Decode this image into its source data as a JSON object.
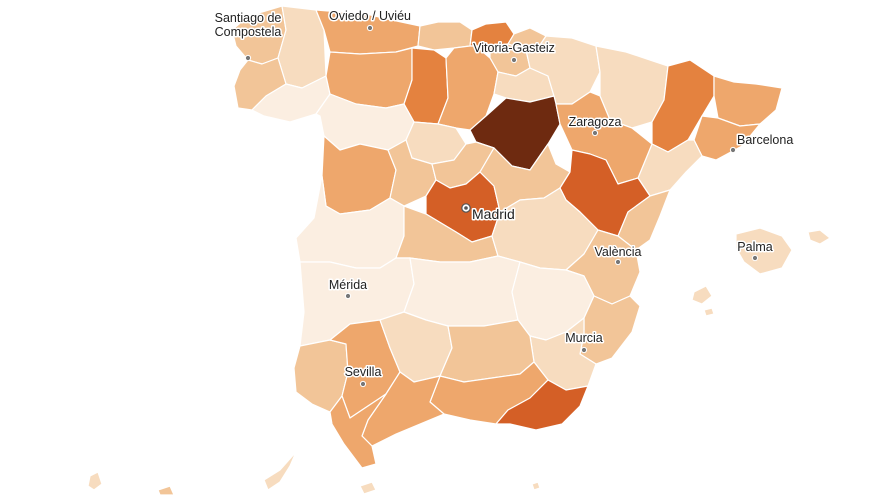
{
  "map": {
    "country": "Spain",
    "palette": {
      "c0": "#fbeee1",
      "c1": "#f7dcbf",
      "c2": "#f2c598",
      "c3": "#eea76c",
      "c4": "#e4823f",
      "c5": "#d45f26",
      "c6": "#6e2a10"
    },
    "cities": [
      {
        "id": "santiago",
        "lines": [
          "Santiago de",
          "Compostela"
        ],
        "capital": false
      },
      {
        "id": "oviedo",
        "lines": [
          "Oviedo / Uviéu"
        ],
        "capital": false
      },
      {
        "id": "vitoria",
        "lines": [
          "Vitoria-Gasteiz"
        ],
        "capital": false
      },
      {
        "id": "zaragoza",
        "lines": [
          "Zaragoza"
        ],
        "capital": false
      },
      {
        "id": "barcelona",
        "lines": [
          "Barcelona"
        ],
        "capital": false
      },
      {
        "id": "madrid",
        "lines": [
          "Madrid"
        ],
        "capital": true
      },
      {
        "id": "valencia",
        "lines": [
          "València"
        ],
        "capital": false
      },
      {
        "id": "palma",
        "lines": [
          "Palma"
        ],
        "capital": false
      },
      {
        "id": "merida",
        "lines": [
          "Mérida"
        ],
        "capital": false
      },
      {
        "id": "murcia",
        "lines": [
          "Murcia"
        ],
        "capital": false
      },
      {
        "id": "sevilla",
        "lines": [
          "Sevilla"
        ],
        "capital": false
      }
    ]
  }
}
